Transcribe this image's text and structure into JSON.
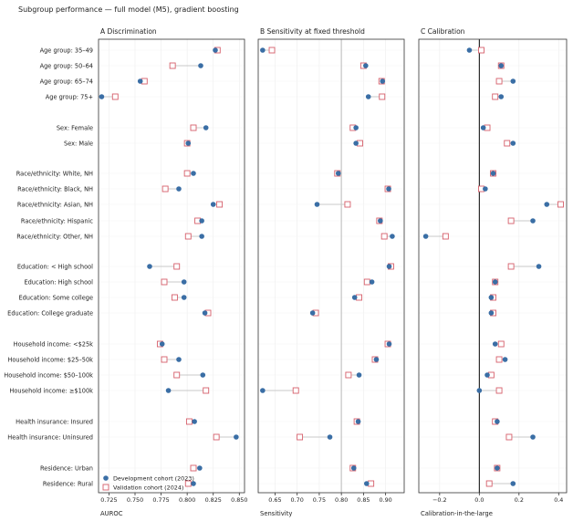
{
  "title": "Subgroup performance — full model (M5), gradient boosting",
  "legend": {
    "dev": "Development cohort (2023)",
    "val": "Validation cohort (2024)"
  },
  "colors": {
    "dev": "#3a6ea5",
    "val": "#d65f6a",
    "connector": "#c8c8c8",
    "ref_line": "#cccccc",
    "zero_line": "#000000",
    "grid": "#ececec"
  },
  "chart_data": [
    {
      "type": "scatter",
      "panel_title": "A  Discrimination",
      "xlabel": "AUROC",
      "xlim": [
        0.715,
        0.855
      ],
      "xticks": [
        0.725,
        0.75,
        0.775,
        0.8,
        0.825,
        0.85
      ],
      "xtick_labels": [
        "0.725",
        "0.750",
        "0.775",
        "0.800",
        "0.825",
        "0.850"
      ],
      "reference_line": null,
      "categories": [
        "Age group: 35–49",
        "Age group: 50–64",
        "Age group: 65–74",
        "Age group: 75+",
        "Sex: Female",
        "Sex: Male",
        "Race/ethnicity: White, NH",
        "Race/ethnicity: Black, NH",
        "Race/ethnicity: Asian, NH",
        "Race/ethnicity: Hispanic",
        "Race/ethnicity: Other, NH",
        "Education: < High school",
        "Education: High school",
        "Education: Some college",
        "Education: College graduate",
        "Household income: <$25k",
        "Household income: $25–50k",
        "Household income: $50–100k",
        "Household income: ≥$100k",
        "Health insurance: Insured",
        "Health insurance: Uninsured",
        "Residence: Urban",
        "Residence: Rural"
      ],
      "series": [
        {
          "name": "Development cohort (2023)",
          "values": [
            0.827,
            0.813,
            0.755,
            0.718,
            0.818,
            0.801,
            0.806,
            0.792,
            0.825,
            0.814,
            0.814,
            0.764,
            0.797,
            0.797,
            0.817,
            0.776,
            0.792,
            0.815,
            0.782,
            0.807,
            0.847,
            0.812,
            0.806
          ]
        },
        {
          "name": "Validation cohort (2024)",
          "values": [
            0.829,
            0.786,
            0.759,
            0.731,
            0.806,
            0.8,
            0.8,
            0.779,
            0.831,
            0.81,
            0.801,
            0.79,
            0.778,
            0.788,
            0.82,
            0.774,
            0.778,
            0.79,
            0.818,
            0.802,
            0.828,
            0.806,
            0.801
          ]
        }
      ]
    },
    {
      "type": "scatter",
      "panel_title": "B  Sensitivity at fixed threshold",
      "xlabel": "Sensitivity",
      "xlim": [
        0.612,
        0.942
      ],
      "xticks": [
        0.65,
        0.7,
        0.75,
        0.8,
        0.85,
        0.9
      ],
      "xtick_labels": [
        "0.65",
        "0.70",
        "0.75",
        "0.80",
        "0.85",
        "0.90"
      ],
      "reference_line": 0.8,
      "series": [
        {
          "name": "Development cohort (2023)",
          "values": [
            0.622,
            0.855,
            0.893,
            0.861,
            0.833,
            0.833,
            0.793,
            0.907,
            0.745,
            0.888,
            0.915,
            0.908,
            0.869,
            0.83,
            0.735,
            0.908,
            0.879,
            0.84,
            0.622,
            0.838,
            0.774,
            0.828,
            0.857
          ]
        },
        {
          "name": "Validation cohort (2024)",
          "values": [
            0.643,
            0.85,
            0.891,
            0.892,
            0.826,
            0.842,
            0.791,
            0.905,
            0.814,
            0.886,
            0.897,
            0.912,
            0.858,
            0.84,
            0.742,
            0.905,
            0.876,
            0.816,
            0.697,
            0.835,
            0.706,
            0.826,
            0.867
          ]
        }
      ]
    },
    {
      "type": "scatter",
      "panel_title": "C  Calibration",
      "xlabel": "Calibration-in-the-large",
      "xlim": [
        -0.305,
        0.44
      ],
      "xticks": [
        -0.2,
        0.0,
        0.2,
        0.4
      ],
      "xtick_labels": [
        "−0.2",
        "0.0",
        "0.2",
        "0.4"
      ],
      "reference_line": 0.0,
      "series": [
        {
          "name": "Development cohort (2023)",
          "values": [
            -0.05,
            0.11,
            0.17,
            0.11,
            0.02,
            0.17,
            0.07,
            0.03,
            0.34,
            0.27,
            -0.27,
            0.3,
            0.08,
            0.06,
            0.06,
            0.08,
            0.13,
            0.04,
            0.0,
            0.09,
            0.27,
            0.09,
            0.17
          ]
        },
        {
          "name": "Validation cohort (2024)",
          "values": [
            0.01,
            0.11,
            0.1,
            0.08,
            0.04,
            0.14,
            0.07,
            0.01,
            0.41,
            0.16,
            -0.17,
            0.16,
            0.08,
            0.07,
            0.07,
            0.11,
            0.1,
            0.06,
            0.1,
            0.08,
            0.15,
            0.09,
            0.05
          ]
        }
      ]
    }
  ]
}
